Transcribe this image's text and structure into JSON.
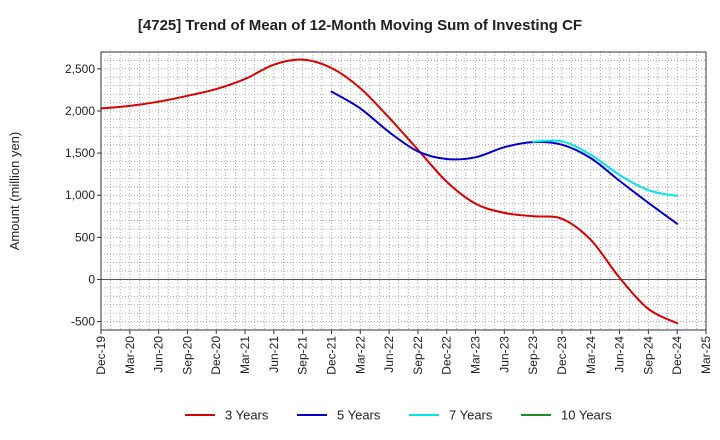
{
  "chart_data": {
    "type": "line",
    "title": "[4725]  Trend of Mean of 12-Month Moving Sum of Investing CF",
    "xlabel": "",
    "ylabel": "Amount (million yen)",
    "ylim": [
      -600,
      2700
    ],
    "yticks": [
      -500,
      0,
      500,
      1000,
      1500,
      2000,
      2500
    ],
    "ytick_labels": [
      "-500",
      "0",
      "500",
      "1,000",
      "1,500",
      "2,000",
      "2,500"
    ],
    "categories": [
      "Dec-19",
      "Mar-20",
      "Jun-20",
      "Sep-20",
      "Dec-20",
      "Mar-21",
      "Jun-21",
      "Sep-21",
      "Dec-21",
      "Mar-22",
      "Jun-22",
      "Sep-22",
      "Dec-22",
      "Mar-23",
      "Jun-23",
      "Sep-23",
      "Dec-23",
      "Mar-24",
      "Jun-24",
      "Sep-24",
      "Dec-24",
      "Mar-25"
    ],
    "grid": true,
    "legend_position": "bottom",
    "series": [
      {
        "name": "3 Years",
        "color": "#dd0000",
        "values": [
          2030,
          2060,
          2110,
          2180,
          2260,
          2380,
          2550,
          2610,
          2510,
          2270,
          1920,
          1540,
          1160,
          900,
          790,
          750,
          720,
          470,
          20,
          -350,
          -520,
          null
        ]
      },
      {
        "name": "5 Years",
        "color": "#0000cc",
        "values": [
          null,
          null,
          null,
          null,
          null,
          null,
          null,
          null,
          2230,
          2030,
          1750,
          1520,
          1430,
          1450,
          1570,
          1630,
          1600,
          1440,
          1170,
          910,
          660,
          null
        ]
      },
      {
        "name": "7 Years",
        "color": "#00e5ee",
        "values": [
          null,
          null,
          null,
          null,
          null,
          null,
          null,
          null,
          null,
          null,
          null,
          null,
          null,
          null,
          null,
          1635,
          1640,
          1480,
          1240,
          1060,
          990,
          null
        ]
      },
      {
        "name": "10 Years",
        "color": "#228b22",
        "values": [
          null,
          null,
          null,
          null,
          null,
          null,
          null,
          null,
          null,
          null,
          null,
          null,
          null,
          null,
          null,
          null,
          null,
          null,
          null,
          null,
          null,
          null
        ]
      }
    ]
  }
}
